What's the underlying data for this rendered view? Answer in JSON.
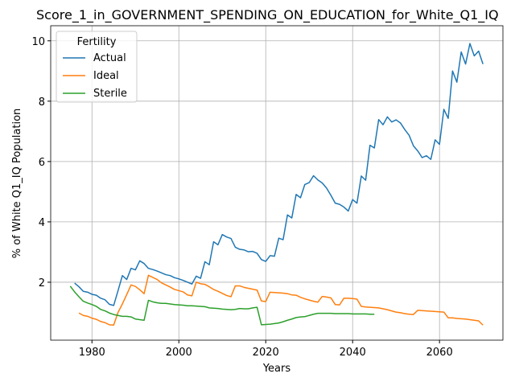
{
  "chart_data": {
    "type": "line",
    "title": "Score_1_in_GOVERNMENT_SPENDING_ON_EDUCATION_for_White_Q1_IQ",
    "xlabel": "Years",
    "ylabel": "% of White Q1_IQ Population",
    "x": [
      1975,
      1976,
      1977,
      1978,
      1979,
      1980,
      1981,
      1982,
      1983,
      1984,
      1985,
      1986,
      1987,
      1988,
      1989,
      1990,
      1991,
      1992,
      1993,
      1994,
      1995,
      1996,
      1997,
      1998,
      1999,
      2000,
      2001,
      2002,
      2003,
      2004,
      2005,
      2006,
      2007,
      2008,
      2009,
      2010,
      2011,
      2012,
      2013,
      2014,
      2015,
      2016,
      2017,
      2018,
      2019,
      2020,
      2021,
      2022,
      2023,
      2024,
      2025,
      2026,
      2027,
      2028,
      2029,
      2030,
      2031,
      2032,
      2033,
      2034,
      2035,
      2036,
      2037,
      2038,
      2039,
      2040,
      2041,
      2042,
      2043,
      2044,
      2045,
      2046,
      2047,
      2048,
      2049,
      2050,
      2051,
      2052,
      2053,
      2054,
      2055,
      2056,
      2057,
      2058,
      2059,
      2060,
      2061,
      2062,
      2063,
      2064,
      2065,
      2066,
      2067,
      2068,
      2069,
      2070
    ],
    "series": [
      {
        "name": "Actual",
        "color": "#1f77b4",
        "values": [
          null,
          1.97,
          1.85,
          1.7,
          1.67,
          1.6,
          1.57,
          1.47,
          1.42,
          1.27,
          1.23,
          1.72,
          2.22,
          2.09,
          2.46,
          2.41,
          2.71,
          2.62,
          2.46,
          2.42,
          2.37,
          2.31,
          2.25,
          2.22,
          2.15,
          2.11,
          2.06,
          2.0,
          1.94,
          2.2,
          2.13,
          2.68,
          2.58,
          3.34,
          3.24,
          3.58,
          3.5,
          3.45,
          3.16,
          3.09,
          3.07,
          3.01,
          3.02,
          2.96,
          2.75,
          2.69,
          2.88,
          2.86,
          3.46,
          3.41,
          4.23,
          4.13,
          4.91,
          4.8,
          5.24,
          5.3,
          5.53,
          5.39,
          5.29,
          5.12,
          4.88,
          4.62,
          4.58,
          4.49,
          4.36,
          4.74,
          4.62,
          5.52,
          5.38,
          6.54,
          6.45,
          7.39,
          7.22,
          7.48,
          7.31,
          7.38,
          7.28,
          7.06,
          6.87,
          6.52,
          6.35,
          6.13,
          6.19,
          6.07,
          6.72,
          6.57,
          7.73,
          7.43,
          9.0,
          8.63,
          9.63,
          9.23,
          9.91,
          9.5,
          9.66,
          9.23
        ]
      },
      {
        "name": "Ideal",
        "color": "#ff7f0e",
        "values": [
          null,
          null,
          0.98,
          0.9,
          0.87,
          0.81,
          0.77,
          0.7,
          0.66,
          0.59,
          0.58,
          1.0,
          1.28,
          1.59,
          1.91,
          1.86,
          1.75,
          1.62,
          2.23,
          2.16,
          2.09,
          1.98,
          1.91,
          1.84,
          1.76,
          1.72,
          1.68,
          1.58,
          1.55,
          2.0,
          1.95,
          1.93,
          1.85,
          1.76,
          1.7,
          1.63,
          1.56,
          1.52,
          1.88,
          1.88,
          1.83,
          1.8,
          1.77,
          1.74,
          1.38,
          1.36,
          1.67,
          1.66,
          1.65,
          1.64,
          1.62,
          1.58,
          1.57,
          1.5,
          1.45,
          1.41,
          1.37,
          1.34,
          1.53,
          1.51,
          1.48,
          1.26,
          1.25,
          1.47,
          1.47,
          1.46,
          1.44,
          1.2,
          1.18,
          1.17,
          1.16,
          1.15,
          1.12,
          1.09,
          1.05,
          1.01,
          0.99,
          0.96,
          0.94,
          0.93,
          1.07,
          1.06,
          1.05,
          1.04,
          1.03,
          1.02,
          1.01,
          0.82,
          0.82,
          0.8,
          0.79,
          0.78,
          0.76,
          0.74,
          0.72,
          0.58
        ]
      },
      {
        "name": "Sterile",
        "color": "#2ca02c",
        "values": [
          1.87,
          1.68,
          1.52,
          1.37,
          1.31,
          1.26,
          1.2,
          1.1,
          1.05,
          0.98,
          0.93,
          0.9,
          0.87,
          0.87,
          0.85,
          0.78,
          0.76,
          0.74,
          1.4,
          1.35,
          1.32,
          1.3,
          1.3,
          1.28,
          1.26,
          1.25,
          1.24,
          1.22,
          1.22,
          1.21,
          1.2,
          1.19,
          1.15,
          1.14,
          1.13,
          1.11,
          1.1,
          1.09,
          1.1,
          1.13,
          1.12,
          1.12,
          1.15,
          1.17,
          0.59,
          0.6,
          0.61,
          0.63,
          0.65,
          0.69,
          0.74,
          0.78,
          0.83,
          0.85,
          0.86,
          0.9,
          0.94,
          0.97,
          0.97,
          0.97,
          0.97,
          0.96,
          0.96,
          0.96,
          0.96,
          0.95,
          0.95,
          0.95,
          0.95,
          0.94,
          0.94,
          null,
          null,
          null,
          null,
          null,
          null,
          null,
          null,
          null,
          null,
          null,
          null,
          null,
          null,
          null,
          null,
          null,
          null,
          null,
          null,
          null,
          null,
          null,
          null,
          null
        ]
      }
    ],
    "legend_title": "Fertility",
    "legend_position": "upper left",
    "xlim": [
      1970.5,
      2074.6
    ],
    "ylim": [
      0.08,
      10.5
    ],
    "xticks": [
      1980,
      2000,
      2020,
      2040,
      2060
    ],
    "yticks": [
      2,
      4,
      6,
      8,
      10
    ],
    "grid": true
  }
}
